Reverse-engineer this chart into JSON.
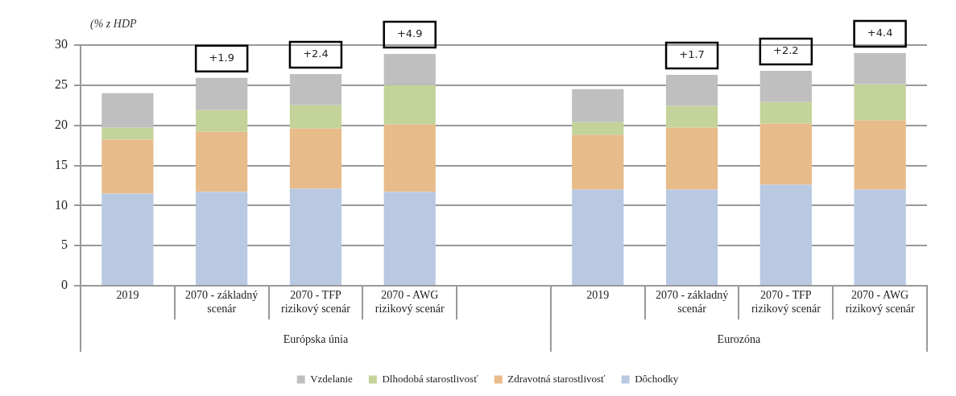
{
  "chart_data": {
    "type": "bar",
    "stacked": true,
    "ylabel": "(% z HDP",
    "categories": [
      "2019",
      "2070 - základný scenár",
      "2070 - TFP rizikový scenár",
      "2070 - AWG rizikový scenár",
      null,
      "2019",
      "2070 - základný scenár",
      "2070 - TFP rizikový scenár",
      "2070 - AWG rizikový scenár"
    ],
    "series": [
      {
        "name": "Dôchodky",
        "color": "#b9c9e2",
        "values": [
          11.5,
          11.7,
          12.1,
          11.7,
          null,
          12.0,
          12.0,
          12.6,
          12.0
        ]
      },
      {
        "name": "Zdravotná starostlivosť",
        "color": "#e8bb8a",
        "values": [
          6.7,
          7.5,
          7.5,
          8.4,
          null,
          6.8,
          7.7,
          7.6,
          8.6
        ]
      },
      {
        "name": "Dlhodobá starostlivosť",
        "color": "#c4d39a",
        "values": [
          1.5,
          2.7,
          2.9,
          4.9,
          null,
          1.6,
          2.7,
          2.7,
          4.5
        ]
      },
      {
        "name": "Vzdelanie",
        "color": "#bfbfbf",
        "values": [
          4.3,
          4.0,
          3.9,
          3.9,
          null,
          4.1,
          3.9,
          3.9,
          3.9
        ]
      }
    ],
    "ylim": [
      0,
      30
    ],
    "yticks": [
      0,
      5,
      10,
      15,
      20,
      25,
      30
    ],
    "grid": "y",
    "legend": "bottom",
    "annotations": [
      "+1.9",
      "+2.4",
      "+4.9",
      "+1.7",
      "+2.2",
      "+4.4",
      "Európska únia",
      "Eurozóna"
    ]
  }
}
